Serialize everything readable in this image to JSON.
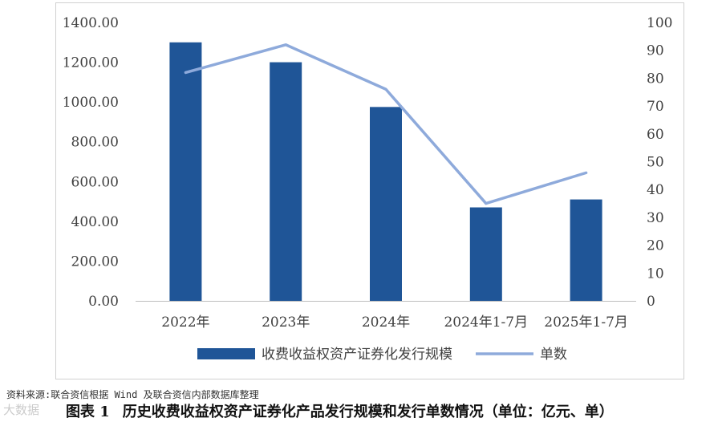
{
  "chart_data": {
    "type": "bar",
    "categories": [
      "2022年",
      "2023年",
      "2024年",
      "2024年1-7月",
      "2025年1-7月"
    ],
    "series": [
      {
        "name": "收费收益权资产证券化发行规模",
        "type": "bar",
        "axis": "left",
        "color": "#1f5597",
        "values": [
          1300,
          1200,
          975,
          470,
          510
        ]
      },
      {
        "name": "单数",
        "type": "line",
        "axis": "right",
        "color": "#8eaadb",
        "values": [
          82,
          92,
          76,
          35,
          46
        ]
      }
    ],
    "y_left": {
      "ticks": [
        "0.00",
        "200.00",
        "400.00",
        "600.00",
        "800.00",
        "1000.00",
        "1200.00",
        "1400.00"
      ],
      "ylim": [
        0,
        1400
      ]
    },
    "y_right": {
      "ticks": [
        "0",
        "10",
        "20",
        "30",
        "40",
        "50",
        "60",
        "70",
        "80",
        "90",
        "100"
      ],
      "ylim": [
        0,
        100
      ]
    },
    "legend_position": "bottom",
    "grid": false
  },
  "source_note": "资料来源:联合资信根据 Wind 及联合资信内部数据库整理",
  "caption": {
    "label": "图表 1",
    "text": "历史收费收益权资产证券化产品发行规模和发行单数情况（单位：亿元、单）"
  },
  "watermark": "大数据"
}
